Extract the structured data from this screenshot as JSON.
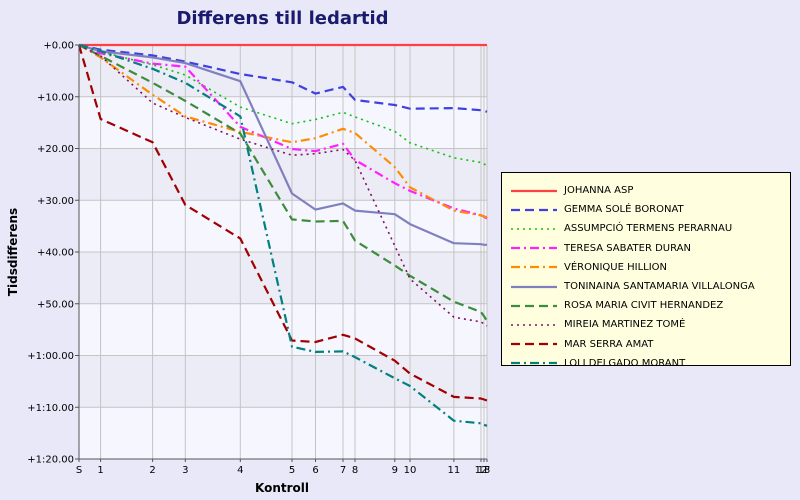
{
  "chart_data": {
    "type": "line",
    "title": "Differens till ledartid",
    "xlabel": "Kontroll",
    "ylabel": "Tidsdifferens",
    "x_ticks": [
      {
        "label": "S",
        "pos": 0
      },
      {
        "label": "1",
        "pos": 1
      },
      {
        "label": "2",
        "pos": 2
      },
      {
        "label": "3",
        "pos": 3
      },
      {
        "label": "4",
        "pos": 4
      },
      {
        "label": "5",
        "pos": 5
      },
      {
        "label": "6",
        "pos": 6
      },
      {
        "label": "7",
        "pos": 7
      },
      {
        "label": "8",
        "pos": 8
      },
      {
        "label": "9",
        "pos": 9
      },
      {
        "label": "10",
        "pos": 10
      },
      {
        "label": "11",
        "pos": 11
      },
      {
        "label": "12",
        "pos": 12
      },
      {
        "label": "13",
        "pos": 13
      },
      {
        "label": "F",
        "pos": 14
      }
    ],
    "x_tick_value": [
      0,
      21.6,
      73.6,
      106.3,
      161.3,
      213.0,
      236.5,
      264.0,
      276.0,
      315.8,
      331.0,
      374.9,
      402.0,
      405.0,
      408.0
    ],
    "y_ticks": [
      {
        "label": "+0.00",
        "value": 0
      },
      {
        "label": "+10.00",
        "value": 10
      },
      {
        "label": "+20.00",
        "value": 20
      },
      {
        "label": "+30.00",
        "value": 30
      },
      {
        "label": "+40.00",
        "value": 40
      },
      {
        "label": "+50.00",
        "value": 50
      },
      {
        "label": "+1:00.00",
        "value": 60
      },
      {
        "label": "+1:10.00",
        "value": 70
      },
      {
        "label": "+1:20.00",
        "value": 80
      }
    ],
    "ylim": [
      0,
      80
    ],
    "grid": true,
    "legend_position": "right",
    "series": [
      {
        "name": "JOHANNA ASP",
        "color": "#ff4040",
        "dash": "solid",
        "values": [
          0,
          0,
          0,
          0,
          0,
          0,
          0,
          0,
          0,
          0,
          0,
          0,
          0,
          0,
          0
        ]
      },
      {
        "name": "GEMMA SOLÉ BORONAT",
        "color": "#4040e0",
        "dash": "dash",
        "values": [
          0,
          0.9,
          2.0,
          3.2,
          5.6,
          7.2,
          9.4,
          8.1,
          10.6,
          11.6,
          12.3,
          12.2,
          12.6,
          12.7,
          12.9
        ]
      },
      {
        "name": "ASSUMPCIÓ TERMENS PERARNAU",
        "color": "#10c010",
        "dash": "dot",
        "values": [
          0,
          1.3,
          3.8,
          5.8,
          12.0,
          15.2,
          14.4,
          13.0,
          13.9,
          16.7,
          18.9,
          21.8,
          22.7,
          23.0,
          23.3
        ]
      },
      {
        "name": "TERESA SABATER DURAN",
        "color": "#ff20ff",
        "dash": "dashdot",
        "values": [
          0,
          1.6,
          3.6,
          4.2,
          15.8,
          20.1,
          20.5,
          19.1,
          22.2,
          26.7,
          28.2,
          31.6,
          32.9,
          33.2,
          33.5
        ]
      },
      {
        "name": "VÉRONIQUE HILLION",
        "color": "#ff8c00",
        "dash": "dashdot",
        "values": [
          0,
          2.4,
          9.6,
          13.8,
          16.8,
          18.8,
          18.0,
          16.2,
          17.0,
          23.6,
          27.5,
          32.0,
          32.9,
          33.1,
          33.3
        ]
      },
      {
        "name": "TONINAINA SANTAMARIA VILLALONGA",
        "color": "#8080c0",
        "dash": "solid",
        "values": [
          0,
          1.2,
          2.4,
          3.5,
          7.0,
          28.7,
          31.8,
          30.6,
          32.0,
          32.7,
          34.6,
          38.3,
          38.5,
          38.6,
          38.6
        ]
      },
      {
        "name": "ROSA MARIA CIVIT HERNANDEZ",
        "color": "#3c8c3c",
        "dash": "dash",
        "values": [
          0,
          2.1,
          7.3,
          10.8,
          17.1,
          33.7,
          34.1,
          34.0,
          37.8,
          42.6,
          44.6,
          49.6,
          51.6,
          52.4,
          53.3
        ]
      },
      {
        "name": "MIREIA MARTINEZ TOMÉ",
        "color": "#801060",
        "dash": "dot",
        "values": [
          0,
          2.1,
          11.2,
          14.0,
          18.2,
          21.3,
          21.0,
          20.2,
          22.3,
          38.8,
          45.2,
          52.6,
          53.5,
          53.9,
          54.3
        ]
      },
      {
        "name": "MAR SERRA AMAT",
        "color": "#a00000",
        "dash": "dash",
        "values": [
          0,
          14.3,
          18.8,
          30.9,
          37.4,
          57.1,
          57.4,
          56.0,
          56.7,
          61.0,
          63.5,
          68.0,
          68.3,
          68.5,
          68.7
        ]
      },
      {
        "name": "LOLI DELGADO MORANT",
        "color": "#008080",
        "dash": "dashdot",
        "values": [
          0,
          1.2,
          4.6,
          7.3,
          13.8,
          58.3,
          59.3,
          59.2,
          60.3,
          64.4,
          65.9,
          72.6,
          73.1,
          73.4,
          73.6
        ]
      }
    ]
  }
}
